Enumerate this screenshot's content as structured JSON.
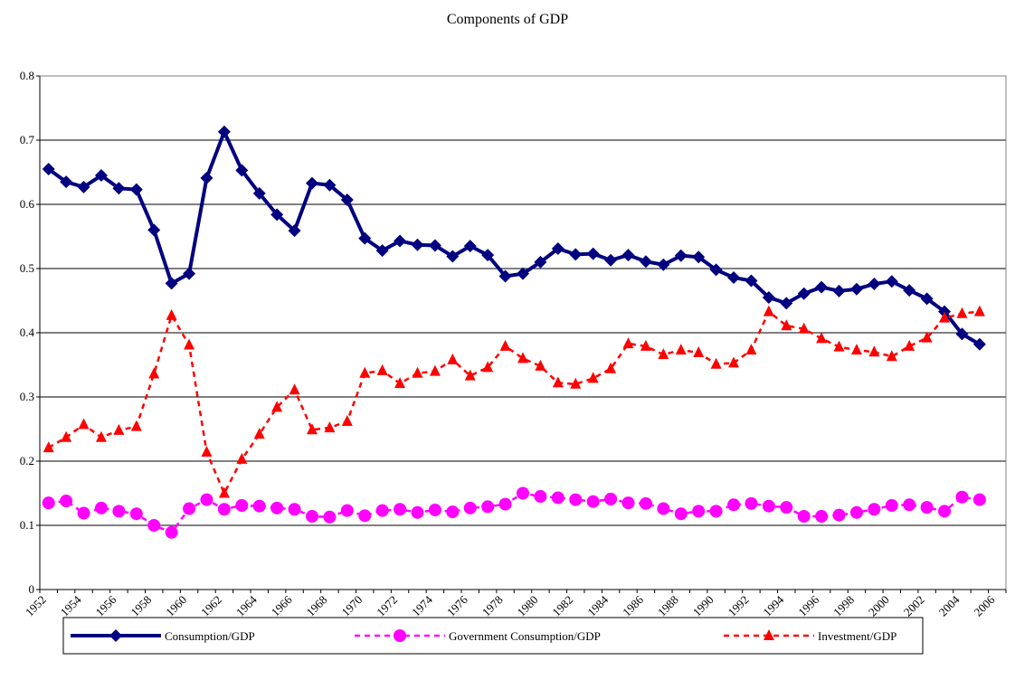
{
  "chart_data": {
    "type": "line",
    "title": "Components of GDP",
    "categories": [
      "1952",
      null,
      "1954",
      null,
      "1956",
      null,
      "1958",
      null,
      "1960",
      null,
      "1962",
      null,
      "1964",
      null,
      "1966",
      null,
      "1968",
      null,
      "1970",
      null,
      "1972",
      null,
      "1974",
      null,
      "1976",
      null,
      "1978",
      null,
      "1980",
      null,
      "1982",
      null,
      "1984",
      null,
      "1986",
      null,
      "1988",
      null,
      "1990",
      null,
      "1992",
      null,
      "1994",
      null,
      "1996",
      null,
      "1998",
      null,
      "2000",
      null,
      "2002",
      null,
      "2004",
      null,
      "2006"
    ],
    "series": [
      {
        "name": "Consumption/GDP",
        "color": "#000080",
        "marker": "diamond",
        "dashed": false,
        "values": [
          0.655,
          0.635,
          0.627,
          0.645,
          0.625,
          0.623,
          0.56,
          0.477,
          0.492,
          0.641,
          0.713,
          0.653,
          0.617,
          0.584,
          0.559,
          0.633,
          0.63,
          0.607,
          0.547,
          0.528,
          0.543,
          0.537,
          0.536,
          0.519,
          0.535,
          0.521,
          0.488,
          0.492,
          0.51,
          0.531,
          0.522,
          0.523,
          0.513,
          0.521,
          0.511,
          0.506,
          0.52,
          0.518,
          0.498,
          0.486,
          0.481,
          0.455,
          0.446,
          0.461,
          0.471,
          0.465,
          0.468,
          0.476,
          0.48,
          0.466,
          0.453,
          0.433,
          0.398,
          0.382,
          null
        ]
      },
      {
        "name": "Government Consumption/GDP",
        "color": "#ff00ff",
        "marker": "circle",
        "dashed": true,
        "values": [
          0.135,
          0.138,
          0.119,
          0.127,
          0.122,
          0.118,
          0.1,
          0.089,
          0.126,
          0.14,
          0.125,
          0.131,
          0.13,
          0.127,
          0.125,
          0.114,
          0.113,
          0.123,
          0.115,
          0.123,
          0.125,
          0.12,
          0.124,
          0.121,
          0.127,
          0.129,
          0.133,
          0.15,
          0.145,
          0.143,
          0.14,
          0.137,
          0.141,
          0.135,
          0.134,
          0.126,
          0.118,
          0.122,
          0.122,
          0.132,
          0.134,
          0.13,
          0.128,
          0.114,
          0.114,
          0.116,
          0.12,
          0.125,
          0.131,
          0.132,
          0.128,
          0.122,
          0.144,
          0.14,
          null
        ]
      },
      {
        "name": "Investment/GDP",
        "color": "#ff0000",
        "marker": "triangle",
        "dashed": true,
        "values": [
          0.221,
          0.237,
          0.257,
          0.237,
          0.248,
          0.254,
          0.336,
          0.427,
          0.381,
          0.214,
          0.15,
          0.203,
          0.242,
          0.284,
          0.311,
          0.249,
          0.252,
          0.262,
          0.337,
          0.341,
          0.321,
          0.337,
          0.34,
          0.358,
          0.333,
          0.346,
          0.379,
          0.36,
          0.348,
          0.322,
          0.32,
          0.329,
          0.344,
          0.383,
          0.379,
          0.366,
          0.373,
          0.369,
          0.351,
          0.353,
          0.373,
          0.433,
          0.411,
          0.406,
          0.391,
          0.378,
          0.373,
          0.37,
          0.363,
          0.379,
          0.392,
          0.423,
          0.43,
          0.433,
          null
        ]
      }
    ],
    "ylim": [
      0,
      0.8
    ],
    "yticks": [
      0,
      0.1,
      0.2,
      0.3,
      0.4,
      0.5,
      0.6,
      0.7,
      0.8
    ],
    "grid": true,
    "legend": "bottom"
  }
}
